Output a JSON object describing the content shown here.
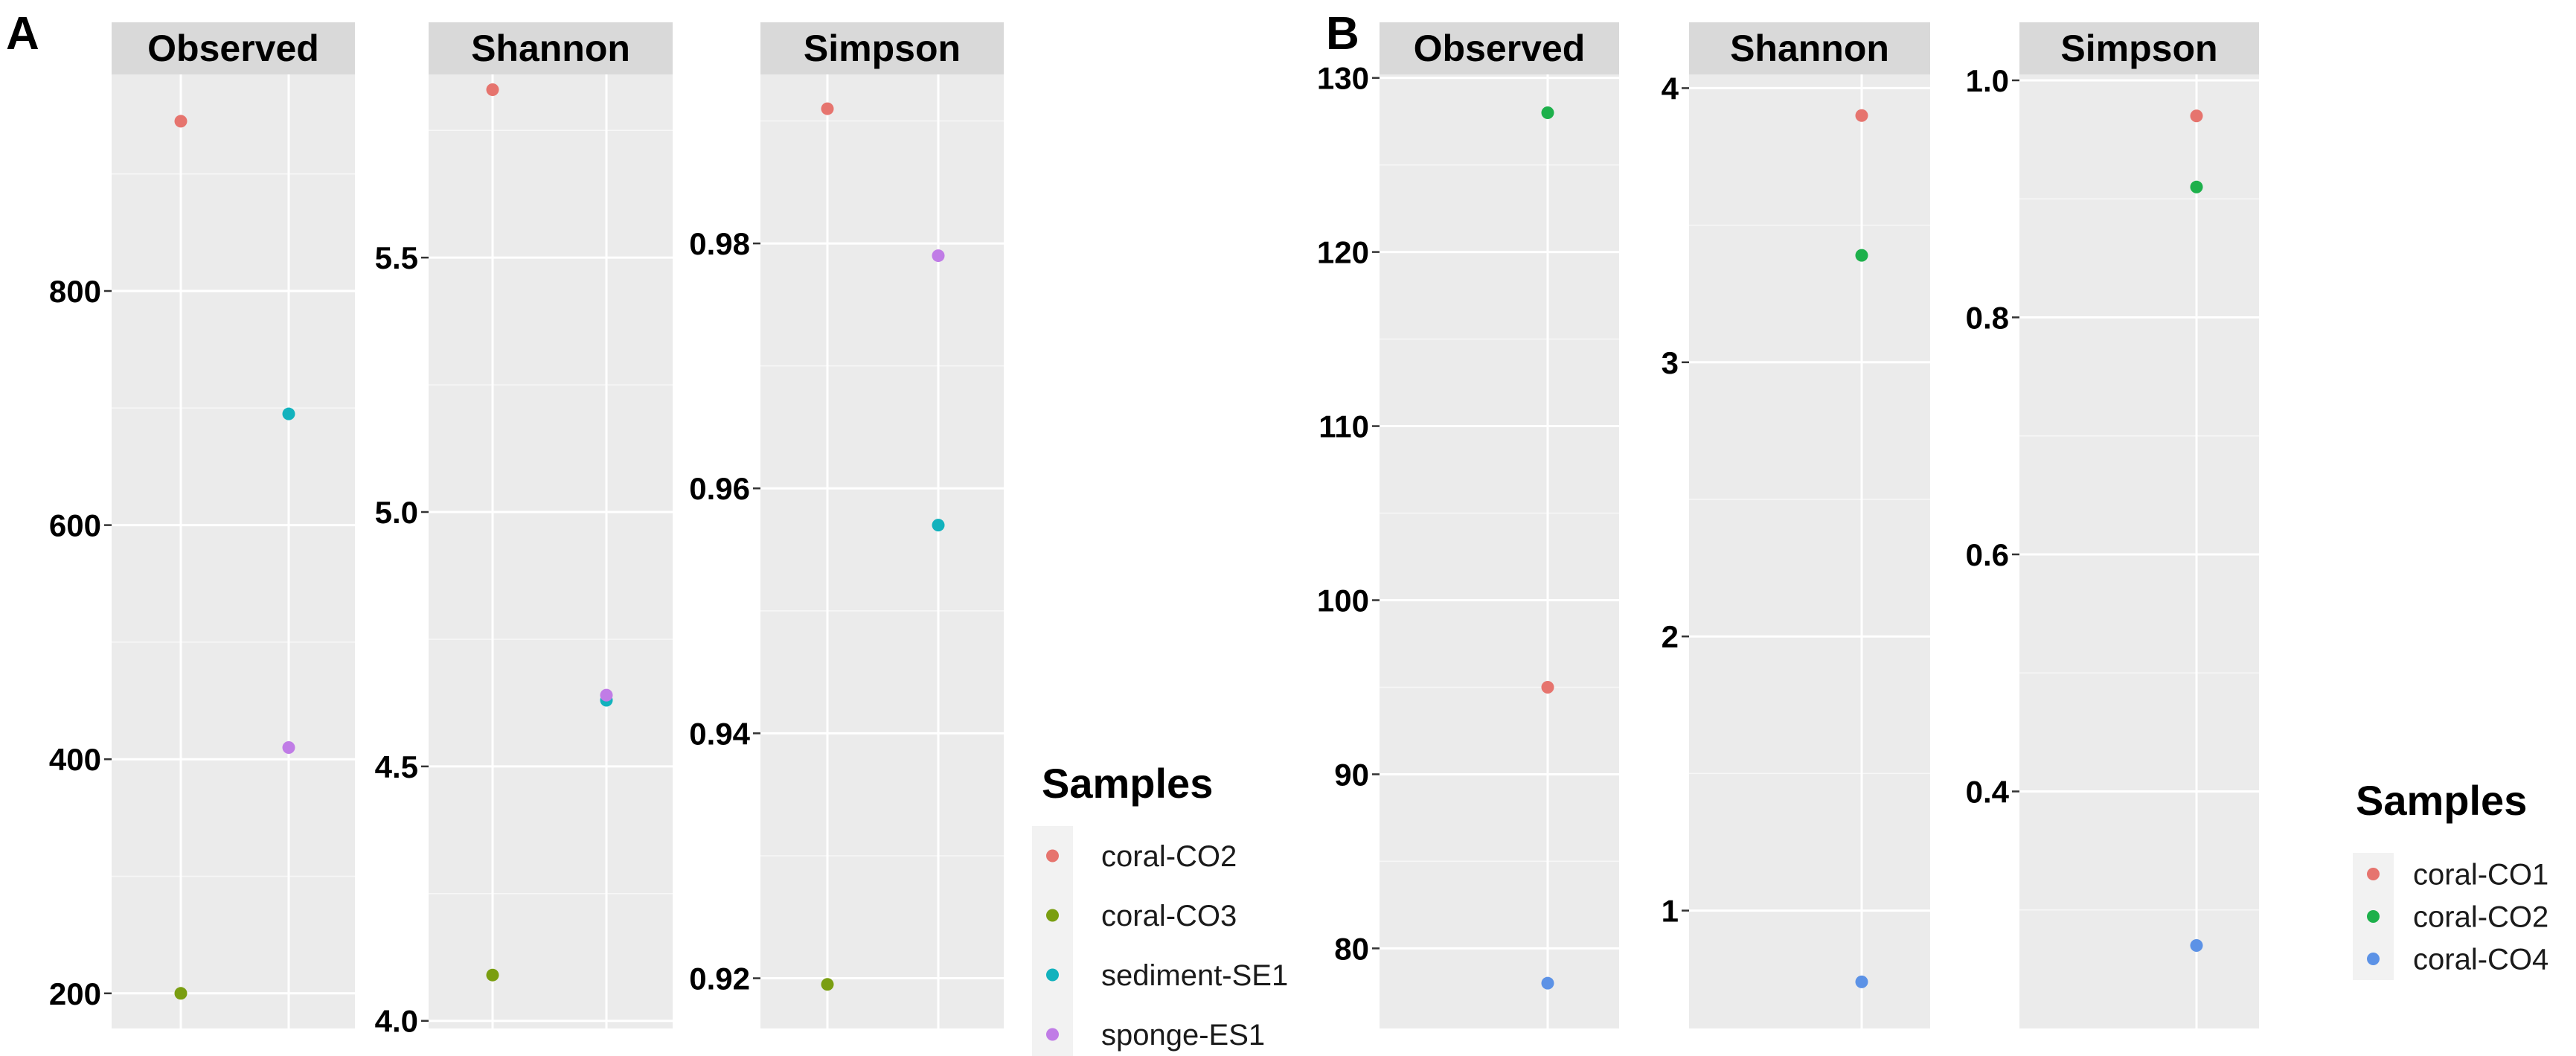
{
  "chart_data": [
    {
      "panel": "A",
      "type": "scatter",
      "legend": {
        "title": "Samples",
        "entries": [
          {
            "label": "coral-CO2",
            "color": "#E6746E"
          },
          {
            "label": "coral-CO3",
            "color": "#7A9E11"
          },
          {
            "label": "sediment-SE1",
            "color": "#12B2BD"
          },
          {
            "label": "sponge-ES1",
            "color": "#C07CE6"
          }
        ]
      },
      "facets": [
        {
          "title": "Observed",
          "ylim": [
            170,
            985
          ],
          "yticks": [
            200,
            400,
            600,
            800
          ],
          "points": [
            {
              "sample": "coral-CO2",
              "x": 1,
              "y": 945
            },
            {
              "sample": "coral-CO3",
              "x": 1,
              "y": 200
            },
            {
              "sample": "sediment-SE1",
              "x": 2,
              "y": 695
            },
            {
              "sample": "sponge-ES1",
              "x": 2,
              "y": 410
            }
          ]
        },
        {
          "title": "Shannon",
          "ylim": [
            3.985,
            5.86
          ],
          "yticks": [
            4.0,
            4.5,
            5.0,
            5.5
          ],
          "points": [
            {
              "sample": "coral-CO2",
              "x": 1,
              "y": 5.83
            },
            {
              "sample": "coral-CO3",
              "x": 1,
              "y": 4.09
            },
            {
              "sample": "sediment-SE1",
              "x": 2,
              "y": 4.63
            },
            {
              "sample": "sponge-ES1",
              "x": 2,
              "y": 4.64
            }
          ]
        },
        {
          "title": "Simpson",
          "ylim": [
            0.9159,
            0.9938
          ],
          "yticks": [
            0.92,
            0.94,
            0.96,
            0.98
          ],
          "points": [
            {
              "sample": "coral-CO2",
              "x": 1,
              "y": 0.991
            },
            {
              "sample": "coral-CO3",
              "x": 1,
              "y": 0.9195
            },
            {
              "sample": "sediment-SE1",
              "x": 2,
              "y": 0.957
            },
            {
              "sample": "sponge-ES1",
              "x": 2,
              "y": 0.979
            }
          ]
        }
      ]
    },
    {
      "panel": "B",
      "type": "scatter",
      "legend": {
        "title": "Samples",
        "entries": [
          {
            "label": "coral-CO1",
            "color": "#E6746E"
          },
          {
            "label": "coral-CO2",
            "color": "#1DB04B"
          },
          {
            "label": "coral-CO4",
            "color": "#5C92E6"
          }
        ]
      },
      "facets": [
        {
          "title": "Observed",
          "ylim": [
            75.4,
            130.2
          ],
          "yticks": [
            80,
            90,
            100,
            110,
            120,
            130
          ],
          "points": [
            {
              "sample": "coral-CO1",
              "x": 1,
              "y": 95
            },
            {
              "sample": "coral-CO2",
              "x": 1,
              "y": 128
            },
            {
              "sample": "coral-CO4",
              "x": 1,
              "y": 78
            }
          ]
        },
        {
          "title": "Shannon",
          "ylim": [
            0.57,
            4.05
          ],
          "yticks": [
            1,
            2,
            3,
            4
          ],
          "points": [
            {
              "sample": "coral-CO1",
              "x": 1,
              "y": 3.9
            },
            {
              "sample": "coral-CO2",
              "x": 1,
              "y": 3.39
            },
            {
              "sample": "coral-CO4",
              "x": 1,
              "y": 0.74
            }
          ]
        },
        {
          "title": "Simpson",
          "ylim": [
            0.2,
            1.005
          ],
          "yticks": [
            0.4,
            0.6,
            0.8,
            1.0
          ],
          "ytick_labels": [
            "0.4",
            "0.6",
            "0.8",
            "1.0"
          ],
          "points": [
            {
              "sample": "coral-CO1",
              "x": 1,
              "y": 0.97
            },
            {
              "sample": "coral-CO2",
              "x": 1,
              "y": 0.91
            },
            {
              "sample": "coral-CO4",
              "x": 1,
              "y": 0.27
            }
          ]
        }
      ]
    }
  ]
}
